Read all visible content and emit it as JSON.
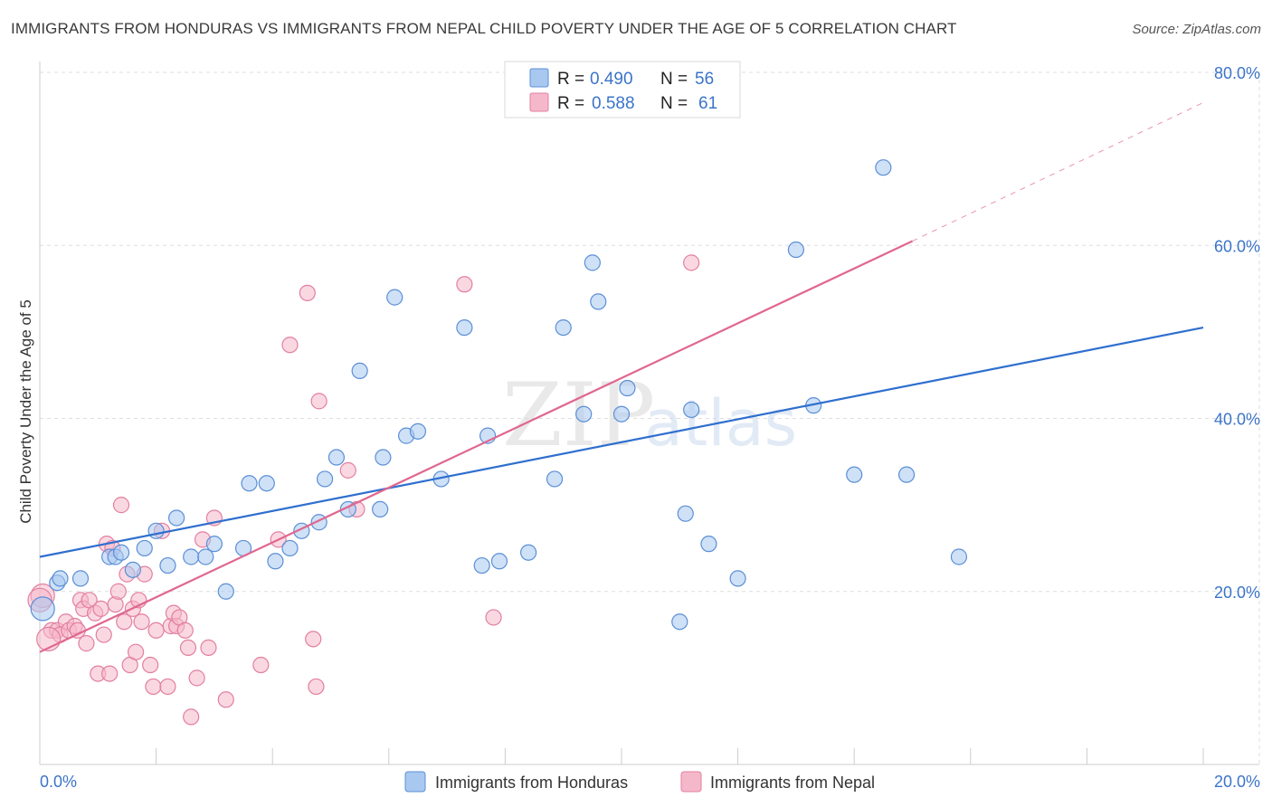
{
  "title": "IMMIGRANTS FROM HONDURAS VS IMMIGRANTS FROM NEPAL CHILD POVERTY UNDER THE AGE OF 5 CORRELATION CHART",
  "source": "Source: ZipAtlas.com",
  "watermark": {
    "zip": "ZIP",
    "atlas": "atlas"
  },
  "legend": {
    "r_label": "R =",
    "n_label": "N =",
    "items": [
      {
        "r": "0.490",
        "n": "56"
      },
      {
        "r": "0.588",
        "n": "61"
      }
    ]
  },
  "bottom_legend": [
    "Immigrants from Honduras",
    "Immigrants from Nepal"
  ],
  "colors": {
    "honduras_fill": "#a8c8f0",
    "honduras_stroke": "#5b8fd6",
    "honduras_line": "#2f6fcf",
    "nepal_fill": "#f5b8cb",
    "nepal_stroke": "#e27fa0",
    "nepal_line": "#e0678f",
    "tick_text": "#3b74c9"
  },
  "chart_data": {
    "type": "scatter",
    "ylabel": "Child Poverty Under the Age of 5",
    "xlabel": "",
    "xlim": [
      0,
      20
    ],
    "ylim": [
      0,
      80
    ],
    "x_ticks": [
      "0.0%",
      "20.0%"
    ],
    "y_ticks": [
      {
        "value": 20,
        "label": "20.0%"
      },
      {
        "value": 40,
        "label": "40.0%"
      },
      {
        "value": 60,
        "label": "60.0%"
      },
      {
        "value": 80,
        "label": "80.0%"
      }
    ],
    "series": [
      {
        "name": "Immigrants from Honduras",
        "points": [
          [
            0.05,
            18.0
          ],
          [
            0.3,
            21.0
          ],
          [
            0.7,
            21.5
          ],
          [
            1.2,
            24.0
          ],
          [
            1.3,
            24.0
          ],
          [
            1.4,
            24.5
          ],
          [
            1.6,
            22.5
          ],
          [
            1.8,
            25.0
          ],
          [
            2.0,
            27.0
          ],
          [
            2.2,
            23.0
          ],
          [
            2.35,
            28.5
          ],
          [
            2.6,
            24.0
          ],
          [
            2.85,
            24.0
          ],
          [
            3.0,
            25.5
          ],
          [
            3.2,
            20.0
          ],
          [
            3.5,
            25.0
          ],
          [
            3.6,
            32.5
          ],
          [
            3.9,
            32.5
          ],
          [
            4.05,
            23.5
          ],
          [
            4.3,
            25.0
          ],
          [
            4.5,
            27.0
          ],
          [
            4.8,
            28.0
          ],
          [
            4.9,
            33.0
          ],
          [
            5.1,
            35.5
          ],
          [
            5.3,
            29.5
          ],
          [
            5.5,
            45.5
          ],
          [
            5.85,
            29.5
          ],
          [
            5.9,
            35.5
          ],
          [
            6.1,
            54.0
          ],
          [
            6.3,
            38.0
          ],
          [
            6.5,
            38.5
          ],
          [
            6.9,
            33.0
          ],
          [
            7.3,
            50.5
          ],
          [
            7.6,
            23.0
          ],
          [
            7.7,
            38.0
          ],
          [
            7.9,
            23.5
          ],
          [
            8.4,
            24.5
          ],
          [
            8.85,
            33.0
          ],
          [
            9.0,
            50.5
          ],
          [
            9.35,
            40.5
          ],
          [
            9.5,
            58.0
          ],
          [
            9.6,
            53.5
          ],
          [
            10.0,
            40.5
          ],
          [
            10.1,
            43.5
          ],
          [
            11.0,
            16.5
          ],
          [
            11.1,
            29.0
          ],
          [
            11.2,
            41.0
          ],
          [
            11.5,
            25.5
          ],
          [
            12.0,
            21.5
          ],
          [
            13.0,
            59.5
          ],
          [
            13.3,
            41.5
          ],
          [
            14.0,
            33.5
          ],
          [
            14.5,
            69.0
          ],
          [
            14.9,
            33.5
          ],
          [
            15.8,
            24.0
          ],
          [
            0.35,
            21.5
          ]
        ]
      },
      {
        "name": "Immigrants from Nepal",
        "points": [
          [
            0.05,
            19.5
          ],
          [
            0.2,
            15.5
          ],
          [
            0.3,
            15.5
          ],
          [
            0.35,
            15.0
          ],
          [
            0.45,
            16.5
          ],
          [
            0.5,
            15.5
          ],
          [
            0.6,
            16.0
          ],
          [
            0.65,
            15.5
          ],
          [
            0.7,
            19.0
          ],
          [
            0.75,
            18.0
          ],
          [
            0.8,
            14.0
          ],
          [
            0.85,
            19.0
          ],
          [
            0.95,
            17.5
          ],
          [
            1.0,
            10.5
          ],
          [
            1.05,
            18.0
          ],
          [
            1.1,
            15.0
          ],
          [
            1.15,
            25.5
          ],
          [
            1.2,
            10.5
          ],
          [
            1.25,
            25.0
          ],
          [
            1.3,
            18.5
          ],
          [
            1.35,
            20.0
          ],
          [
            1.4,
            30.0
          ],
          [
            1.45,
            16.5
          ],
          [
            1.5,
            22.0
          ],
          [
            1.55,
            11.5
          ],
          [
            1.6,
            18.0
          ],
          [
            1.65,
            13.0
          ],
          [
            1.7,
            19.0
          ],
          [
            1.75,
            16.5
          ],
          [
            1.8,
            22.0
          ],
          [
            1.9,
            11.5
          ],
          [
            1.95,
            9.0
          ],
          [
            2.0,
            15.5
          ],
          [
            2.1,
            27.0
          ],
          [
            2.2,
            9.0
          ],
          [
            2.25,
            16.0
          ],
          [
            2.3,
            17.5
          ],
          [
            2.35,
            16.0
          ],
          [
            2.4,
            17.0
          ],
          [
            2.5,
            15.5
          ],
          [
            2.55,
            13.5
          ],
          [
            2.6,
            5.5
          ],
          [
            2.7,
            10.0
          ],
          [
            2.8,
            26.0
          ],
          [
            2.9,
            13.5
          ],
          [
            3.0,
            28.5
          ],
          [
            3.2,
            7.5
          ],
          [
            3.8,
            11.5
          ],
          [
            4.1,
            26.0
          ],
          [
            4.3,
            48.5
          ],
          [
            4.6,
            54.5
          ],
          [
            4.7,
            14.5
          ],
          [
            4.75,
            9.0
          ],
          [
            4.8,
            42.0
          ],
          [
            5.3,
            34.0
          ],
          [
            5.45,
            29.5
          ],
          [
            7.3,
            55.5
          ],
          [
            7.8,
            17.0
          ],
          [
            11.2,
            58.0
          ],
          [
            0.0,
            19.0
          ],
          [
            0.15,
            14.5
          ]
        ]
      }
    ],
    "trend_lines": [
      {
        "name": "Immigrants from Honduras",
        "x": [
          0,
          20
        ],
        "y": [
          24.0,
          50.5
        ],
        "style": "solid"
      },
      {
        "name": "Immigrants from Nepal",
        "x": [
          0,
          15.0
        ],
        "y": [
          13.0,
          60.5
        ],
        "style": "solid"
      },
      {
        "name": "Immigrants from Nepal",
        "x": [
          15.0,
          20
        ],
        "y": [
          60.5,
          76.5
        ],
        "style": "dashed"
      }
    ],
    "grid": true,
    "legend_position": "top-center"
  }
}
